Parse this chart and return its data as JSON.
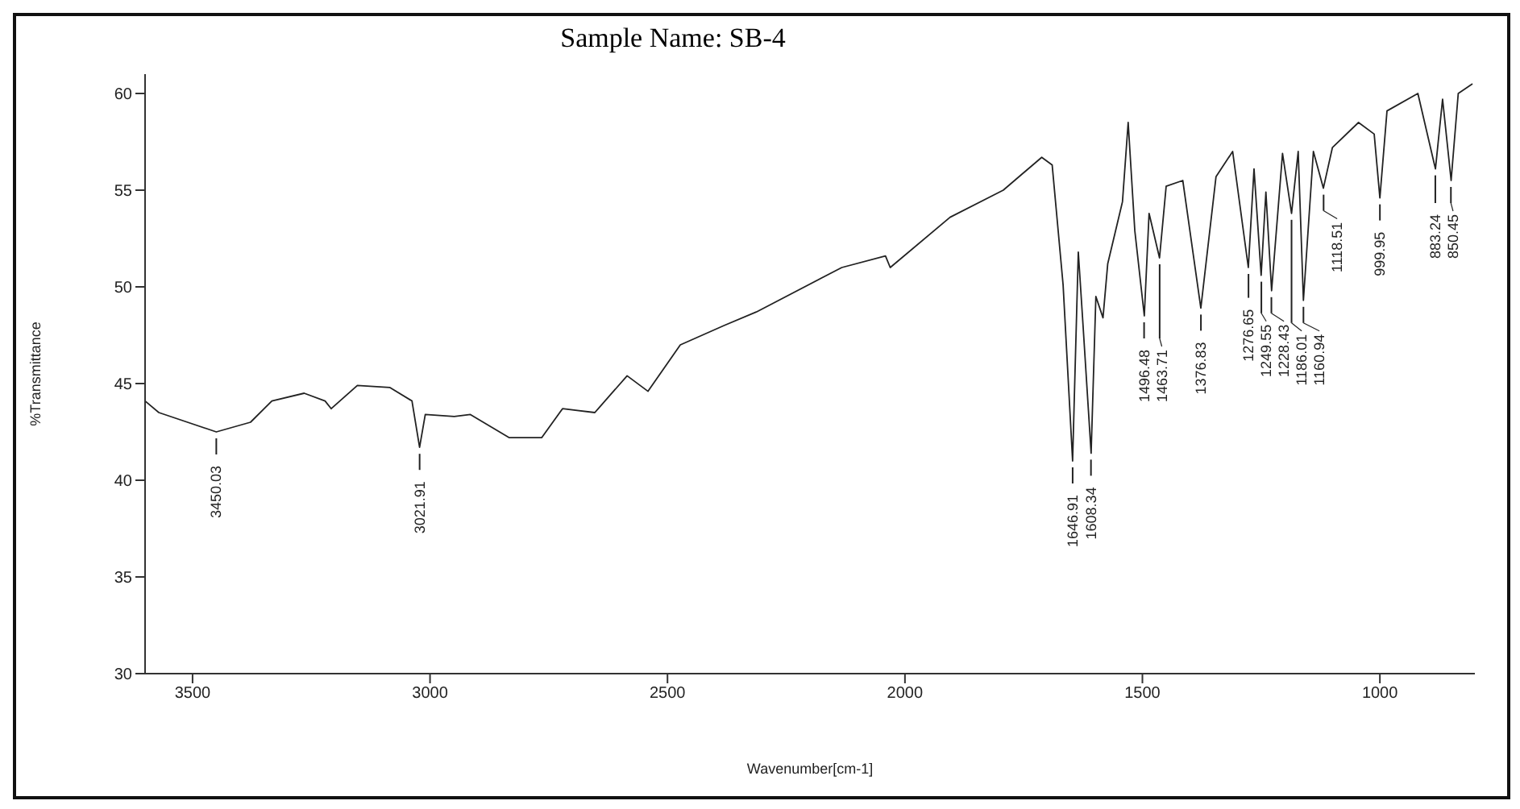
{
  "chart_data": {
    "type": "line",
    "title": "Sample Name: SB-4",
    "xlabel": "Wavenumber[cm-1]",
    "ylabel": "%Transmittance",
    "xlim": [
      3600,
      800
    ],
    "xticks": [
      3500,
      3000,
      2500,
      2000,
      1500,
      1000
    ],
    "ylim": [
      30,
      61
    ],
    "yticks": [
      30,
      35,
      40,
      45,
      50,
      55,
      60
    ],
    "grid": false,
    "legend": false,
    "marker": "none",
    "line_style": "solid",
    "series": [
      {
        "color": "#222222",
        "x": [
          3600,
          3571,
          3450,
          3378,
          3333,
          3265,
          3221,
          3208,
          3153,
          3085,
          3038,
          3022,
          3010,
          2949,
          2915,
          2833,
          2765,
          2721,
          2653,
          2585,
          2541,
          2473,
          2381,
          2313,
          2133,
          2041,
          2031,
          1905,
          1793,
          1712,
          1690,
          1667,
          1647,
          1635,
          1625,
          1608,
          1598,
          1583,
          1573,
          1542,
          1530,
          1516,
          1496,
          1486,
          1464,
          1450,
          1415,
          1377,
          1345,
          1310,
          1277,
          1265,
          1250,
          1240,
          1228,
          1205,
          1186,
          1172,
          1161,
          1140,
          1119,
          1100,
          1045,
          1012,
          1000,
          985,
          920,
          883,
          868,
          850,
          835,
          805
        ],
        "values": [
          44.1,
          43.5,
          42.5,
          43.0,
          44.1,
          44.5,
          44.1,
          43.7,
          44.9,
          44.8,
          44.1,
          41.7,
          43.4,
          43.3,
          43.4,
          42.2,
          42.2,
          43.7,
          43.5,
          45.4,
          44.6,
          47.0,
          48.0,
          48.7,
          51.0,
          51.6,
          51.0,
          53.6,
          55.0,
          56.7,
          56.3,
          50.1,
          41.0,
          51.8,
          48.0,
          41.4,
          49.5,
          48.4,
          51.2,
          54.4,
          58.5,
          52.9,
          48.5,
          53.8,
          51.5,
          55.2,
          55.5,
          48.9,
          55.7,
          57.0,
          51.0,
          56.1,
          50.6,
          54.9,
          49.8,
          56.9,
          53.8,
          57.0,
          49.3,
          57.0,
          55.1,
          57.2,
          58.5,
          57.9,
          54.6,
          59.1,
          60.0,
          56.1,
          59.7,
          55.5,
          60.0,
          60.5
        ]
      }
    ],
    "annotations": [
      {
        "text": "3450.03",
        "x": 3450.03,
        "y": 42.5
      },
      {
        "text": "3021.91",
        "x": 3021.91,
        "y": 41.7
      },
      {
        "text": "1646.91",
        "x": 1646.91,
        "y": 41.0
      },
      {
        "text": "1608.34",
        "x": 1608.34,
        "y": 41.4
      },
      {
        "text": "1496.48",
        "x": 1496.48,
        "y": 48.5
      },
      {
        "text": "1463.71",
        "x": 1463.71,
        "y": 51.5
      },
      {
        "text": "1376.83",
        "x": 1376.83,
        "y": 48.9
      },
      {
        "text": "1276.65",
        "x": 1276.65,
        "y": 51.0
      },
      {
        "text": "1249.55",
        "x": 1249.55,
        "y": 50.6
      },
      {
        "text": "1228.43",
        "x": 1228.43,
        "y": 49.8
      },
      {
        "text": "1186.01",
        "x": 1186.01,
        "y": 53.8
      },
      {
        "text": "1160.94",
        "x": 1160.94,
        "y": 49.3
      },
      {
        "text": "1118.51",
        "x": 1118.51,
        "y": 55.1
      },
      {
        "text": "999.95",
        "x": 999.95,
        "y": 54.6
      },
      {
        "text": "883.24",
        "x": 883.24,
        "y": 56.1
      },
      {
        "text": "850.45",
        "x": 850.45,
        "y": 55.5
      }
    ]
  }
}
